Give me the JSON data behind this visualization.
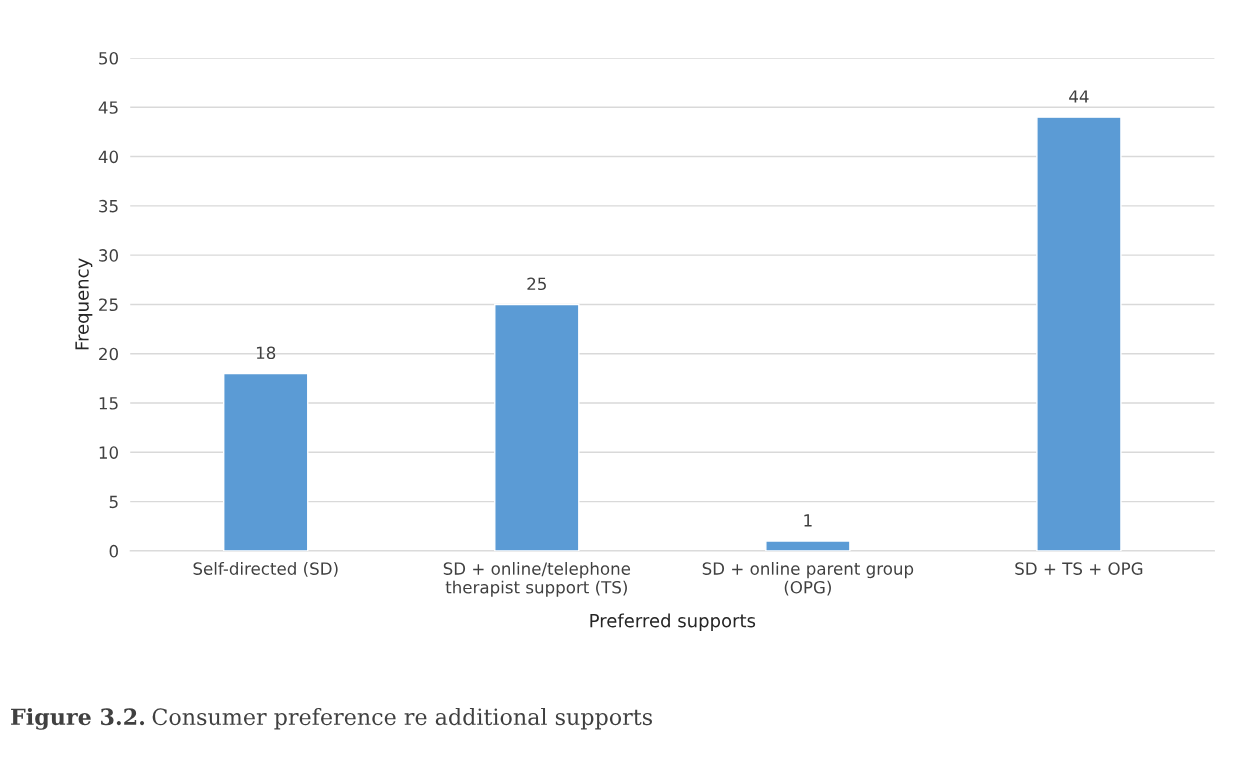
{
  "chart_data": {
    "type": "bar",
    "categories": [
      "Self-directed (SD)",
      "SD + online/telephone\ntherapist support (TS)",
      "SD + online parent group\n(OPG)",
      "SD + TS + OPG"
    ],
    "values": [
      18,
      25,
      1,
      44
    ],
    "color": "#5b9bd5",
    "xlabel": "Preferred supports",
    "ylabel": "Frequency",
    "ylim": [
      0,
      50
    ],
    "yticks": [
      0,
      5,
      10,
      15,
      20,
      25,
      30,
      35,
      40,
      45,
      50
    ],
    "grid": "y",
    "data_labels": true,
    "legend": false,
    "annotations": [
      "Figure 3.2.",
      "Consumer preference re additional supports"
    ]
  }
}
